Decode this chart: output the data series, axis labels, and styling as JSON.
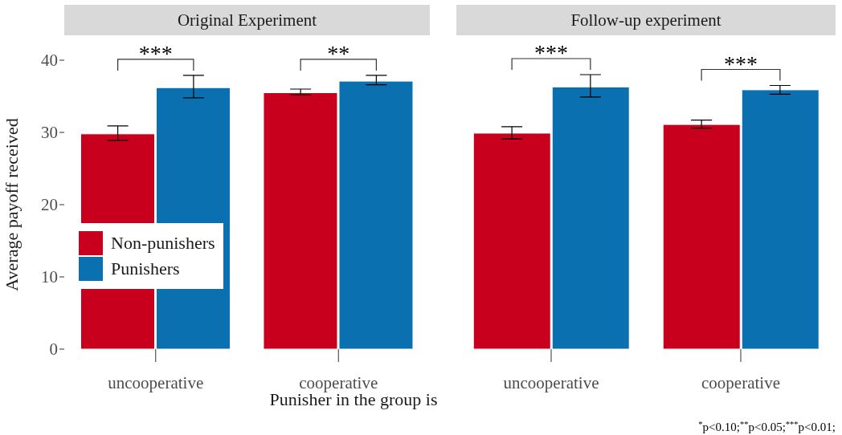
{
  "chart_data": [
    {
      "type": "bar",
      "title": "Original Experiment",
      "xlabel": "Punisher in the group is",
      "ylabel": "Average payoff received",
      "categories": [
        "uncooperative",
        "cooperative"
      ],
      "series": [
        {
          "name": "Non-punishers",
          "color": "#c8001e",
          "values": [
            29.8,
            35.5
          ],
          "errors": [
            [
              28.9,
              30.9
            ],
            [
              35.2,
              36.0
            ]
          ]
        },
        {
          "name": "Punishers",
          "color": "#0a70b0",
          "values": [
            36.2,
            37.1
          ],
          "errors": [
            [
              34.8,
              37.9
            ],
            [
              36.6,
              37.9
            ]
          ]
        }
      ],
      "ylim": [
        0,
        40
      ],
      "yticks": [
        0,
        10,
        20,
        30,
        40
      ],
      "legend": "bottom left",
      "annotations": [
        "***",
        "**"
      ]
    },
    {
      "type": "bar",
      "title": "Follow-up experiment",
      "categories": [
        "uncooperative",
        "cooperative"
      ],
      "series": [
        {
          "color": "#c8001e",
          "values": [
            29.9,
            31.1
          ],
          "errors": [
            [
              29.1,
              30.8
            ],
            [
              30.6,
              31.7
            ]
          ]
        },
        {
          "color": "#0a70b0",
          "values": [
            36.3,
            35.9
          ],
          "errors": [
            [
              34.9,
              38.0
            ],
            [
              35.3,
              36.5
            ]
          ]
        }
      ],
      "ylim": [
        0,
        40
      ],
      "yticks": [
        0,
        10,
        20,
        30,
        40
      ],
      "tick_labels": "x",
      "annotations": [
        "***",
        "***",
        "$^{*}$p<0.10;$^{**}$p<0.05;$^{***}$p<0.01;"
      ]
    }
  ]
}
